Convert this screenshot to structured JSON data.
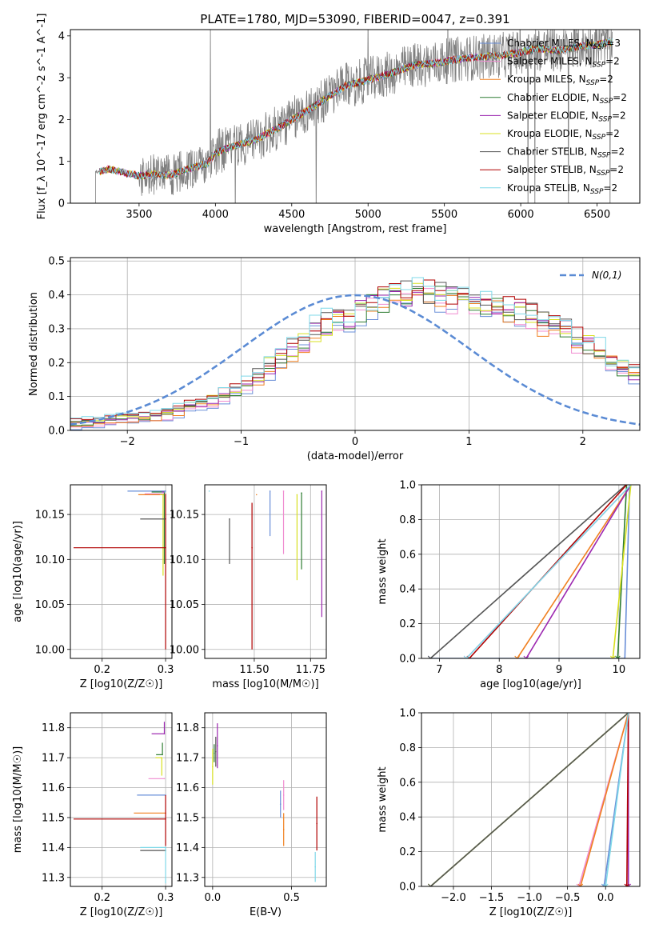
{
  "figure_title": "PLATE=1780, MJD=53090, FIBERID=0047, z=0.391",
  "series_names": [
    "Chabrier MILES",
    "Salpeter MILES",
    "Kroupa MILES",
    "Chabrier ELODIE",
    "Salpeter ELODIE",
    "Kroupa ELODIE",
    "Chabrier STELIB",
    "Salpeter STELIB",
    "Kroupa STELIB"
  ],
  "series_nssp": [
    3,
    2,
    2,
    2,
    2,
    2,
    2,
    2,
    2
  ],
  "series_colors": [
    "#6a8fd8",
    "#f08cd0",
    "#f08020",
    "#2e7d32",
    "#9c27b0",
    "#d8e020",
    "#555555",
    "#b00000",
    "#7fd8e8"
  ],
  "chart_data": [
    {
      "id": "spectrum",
      "type": "line",
      "title": "PLATE=1780, MJD=53090, FIBERID=0047, z=0.391",
      "xlabel": "wavelength [Angstrom, rest frame]",
      "ylabel": "Flux [f_λ 10^-17 erg cm^-2 s^-1 A^-1]",
      "xlim": [
        3050,
        6780
      ],
      "ylim": [
        0,
        4.15
      ],
      "xticks": [
        3500,
        4000,
        4500,
        5000,
        5500,
        6000,
        6500
      ],
      "yticks": [
        0,
        1,
        2,
        3,
        4
      ],
      "data_color": "#808080",
      "data_wavelength_start": 3215,
      "data_wavelength_end": 6600,
      "model_continuum_points": [
        [
          3240,
          0.75
        ],
        [
          3300,
          0.82
        ],
        [
          3400,
          0.73
        ],
        [
          3500,
          0.66
        ],
        [
          3600,
          0.69
        ],
        [
          3700,
          0.66
        ],
        [
          3800,
          0.8
        ],
        [
          3950,
          0.95
        ],
        [
          4000,
          1.2
        ],
        [
          4100,
          1.35
        ],
        [
          4250,
          1.5
        ],
        [
          4400,
          1.78
        ],
        [
          4550,
          2.1
        ],
        [
          4700,
          2.45
        ],
        [
          4850,
          2.8
        ],
        [
          5000,
          2.95
        ],
        [
          5150,
          3.1
        ],
        [
          5300,
          3.3
        ],
        [
          5450,
          3.35
        ],
        [
          5600,
          3.45
        ],
        [
          5750,
          3.5
        ],
        [
          5900,
          3.55
        ],
        [
          6000,
          3.6
        ],
        [
          6100,
          3.7
        ],
        [
          6250,
          3.65
        ],
        [
          6400,
          3.75
        ],
        [
          6600,
          3.85
        ]
      ],
      "grid": false,
      "legend_position": "right"
    },
    {
      "id": "residual-distribution",
      "type": "line",
      "xlabel": "(data-model)/error",
      "ylabel": "Normed distribution",
      "xlim": [
        -2.5,
        2.5
      ],
      "ylim": [
        0,
        0.51
      ],
      "xticks": [
        -2,
        -1,
        0,
        1,
        2
      ],
      "yticks": [
        0,
        0.1,
        0.2,
        0.3,
        0.4,
        0.5
      ],
      "normal_curve_label": "N(0,1)",
      "normal_curve_color": "#5b8bd4",
      "bin_width": 0.1,
      "base_histogram": [
        0.02,
        0.022,
        0.025,
        0.03,
        0.035,
        0.035,
        0.04,
        0.042,
        0.05,
        0.06,
        0.07,
        0.08,
        0.09,
        0.1,
        0.12,
        0.14,
        0.16,
        0.19,
        0.22,
        0.24,
        0.27,
        0.29,
        0.31,
        0.32,
        0.33,
        0.35,
        0.37,
        0.38,
        0.4,
        0.4,
        0.41,
        0.4,
        0.4,
        0.39,
        0.39,
        0.38,
        0.38,
        0.37,
        0.36,
        0.35,
        0.34,
        0.32,
        0.31,
        0.29,
        0.27,
        0.25,
        0.23,
        0.2,
        0.18,
        0.16,
        0.14,
        0.12,
        0.1,
        0.09,
        0.08,
        0.07,
        0.06,
        0.06,
        0.05,
        0.05
      ],
      "grid": true,
      "legend_position": "top-right"
    },
    {
      "id": "age-vs-metallicity",
      "type": "scatter",
      "xlabel": "Z [log10(Z/Z☉)]",
      "ylabel": "age [log10(age/yr)]",
      "xlim": [
        0.15,
        0.31
      ],
      "ylim": [
        9.99,
        10.183
      ],
      "xticks": [
        0.2,
        0.3
      ],
      "yticks": [
        10.0,
        10.05,
        10.1,
        10.15
      ],
      "points": [
        {
          "x": 0.3,
          "y": 10.176,
          "xerr": [
            0.06,
            0.0
          ],
          "yerr": [
            0.0,
            0.0
          ]
        },
        {
          "x": 0.297,
          "y": 10.173,
          "xerr": [
            0.03,
            0.0
          ],
          "yerr": [
            0.0,
            0.0
          ]
        },
        {
          "x": 0.297,
          "y": 10.172,
          "xerr": [
            0.04,
            0.0
          ],
          "yerr": [
            0.0,
            0.0
          ]
        },
        {
          "x": 0.298,
          "y": 10.175,
          "xerr": [
            0.02,
            0.0
          ],
          "yerr": [
            0.08,
            0.0
          ]
        },
        {
          "x": 0.299,
          "y": 10.175,
          "xerr": [
            0.005,
            0.0
          ],
          "yerr": [
            0.0,
            0.0
          ]
        },
        {
          "x": 0.296,
          "y": 10.172,
          "xerr": [
            0.005,
            0.0
          ],
          "yerr": [
            0.09,
            0.0
          ]
        },
        {
          "x": 0.3,
          "y": 10.145,
          "xerr": [
            0.04,
            0.0
          ],
          "yerr": [
            0.0,
            0.0
          ]
        },
        {
          "x": 0.3,
          "y": 10.113,
          "xerr": [
            0.145,
            0.0
          ],
          "yerr": [
            0.113,
            0.06
          ]
        },
        {
          "x": 0.299,
          "y": 10.175,
          "xerr": [
            0.0,
            0.0
          ],
          "yerr": [
            0.0,
            0.0
          ]
        }
      ],
      "grid": true
    },
    {
      "id": "age-vs-mass",
      "type": "scatter",
      "xlabel": "mass [log10(M/M☉)]",
      "ylabel": "",
      "xlim": [
        11.28,
        11.82
      ],
      "ylim": [
        9.99,
        10.183
      ],
      "xticks": [
        11.5,
        11.75
      ],
      "yticks": [
        10.0,
        10.05,
        10.1,
        10.15
      ],
      "points": [
        {
          "x": 11.57,
          "y": 10.176,
          "xerr": [
            0.0,
            0.0
          ],
          "yerr": [
            0.05,
            0.0
          ]
        },
        {
          "x": 11.63,
          "y": 10.176,
          "xerr": [
            0.0,
            0.0
          ],
          "yerr": [
            0.07,
            0.0
          ]
        },
        {
          "x": 11.51,
          "y": 10.172,
          "xerr": [
            0.0,
            0.0
          ],
          "yerr": [
            0.0,
            0.0
          ]
        },
        {
          "x": 11.71,
          "y": 10.174,
          "xerr": [
            0.0,
            0.0
          ],
          "yerr": [
            0.085,
            0.0
          ]
        },
        {
          "x": 11.8,
          "y": 10.176,
          "xerr": [
            0.0,
            0.0
          ],
          "yerr": [
            0.14,
            0.0
          ]
        },
        {
          "x": 11.69,
          "y": 10.172,
          "xerr": [
            0.0,
            0.0
          ],
          "yerr": [
            0.095,
            0.0
          ]
        },
        {
          "x": 11.39,
          "y": 10.145,
          "xerr": [
            0.0,
            0.0
          ],
          "yerr": [
            0.05,
            0.0
          ]
        },
        {
          "x": 11.49,
          "y": 10.113,
          "xerr": [
            0.0,
            0.0
          ],
          "yerr": [
            0.113,
            0.05
          ]
        },
        {
          "x": 11.3,
          "y": 10.176,
          "xerr": [
            0.0,
            0.0
          ],
          "yerr": [
            0.0,
            0.0
          ]
        }
      ],
      "grid": true
    },
    {
      "id": "cumulative-mass-weight-vs-age",
      "type": "line",
      "xlabel": "age [log10(age/yr)]",
      "ylabel": "mass weight",
      "xlim": [
        6.7,
        10.35
      ],
      "ylim": [
        0,
        1.0
      ],
      "xticks": [
        7,
        8,
        9,
        10
      ],
      "yticks": [
        0.0,
        0.2,
        0.4,
        0.6,
        0.8,
        1.0
      ],
      "series": [
        {
          "x": [
            6.85,
            10.1,
            10.18
          ],
          "y": [
            0.0,
            0.0,
            1.0
          ]
        },
        {
          "x": [
            7.45,
            10.2
          ],
          "y": [
            0.0,
            1.0
          ]
        },
        {
          "x": [
            8.3,
            10.2
          ],
          "y": [
            0.0,
            1.0
          ]
        },
        {
          "x": [
            9.98,
            10.13
          ],
          "y": [
            0.0,
            1.0
          ]
        },
        {
          "x": [
            8.45,
            10.2
          ],
          "y": [
            0.0,
            1.0
          ]
        },
        {
          "x": [
            9.9,
            10.2
          ],
          "y": [
            0.0,
            1.0
          ]
        },
        {
          "x": [
            6.85,
            10.12
          ],
          "y": [
            0.0,
            1.0
          ]
        },
        {
          "x": [
            7.5,
            10.13
          ],
          "y": [
            0.0,
            1.0
          ]
        },
        {
          "x": [
            7.45,
            10.2
          ],
          "y": [
            0.0,
            1.0
          ]
        }
      ],
      "grid": true
    },
    {
      "id": "mass-vs-metallicity",
      "type": "scatter",
      "xlabel": "Z [log10(Z/Z☉)]",
      "ylabel": "mass [log10(M/M☉)]",
      "xlim": [
        0.15,
        0.31
      ],
      "ylim": [
        11.27,
        11.85
      ],
      "xticks": [
        0.2,
        0.3
      ],
      "yticks": [
        11.3,
        11.4,
        11.5,
        11.6,
        11.7,
        11.8
      ],
      "points": [
        {
          "x": 0.3,
          "y": 11.575,
          "xerr": [
            0.045,
            0.0
          ],
          "yerr": [
            0.0,
            0.0
          ]
        },
        {
          "x": 0.298,
          "y": 11.63,
          "xerr": [
            0.025,
            0.0
          ],
          "yerr": [
            0.0,
            0.0
          ]
        },
        {
          "x": 0.3,
          "y": 11.515,
          "xerr": [
            0.05,
            0.0
          ],
          "yerr": [
            0.0,
            0.0
          ]
        },
        {
          "x": 0.295,
          "y": 11.71,
          "xerr": [
            0.01,
            0.0
          ],
          "yerr": [
            0.0,
            0.04
          ]
        },
        {
          "x": 0.298,
          "y": 11.78,
          "xerr": [
            0.02,
            0.0
          ],
          "yerr": [
            0.0,
            0.04
          ]
        },
        {
          "x": 0.294,
          "y": 11.7,
          "xerr": [
            0.01,
            0.0
          ],
          "yerr": [
            0.06,
            0.0
          ]
        },
        {
          "x": 0.3,
          "y": 11.39,
          "xerr": [
            0.04,
            0.0
          ],
          "yerr": [
            0.0,
            0.0
          ]
        },
        {
          "x": 0.3,
          "y": 11.495,
          "xerr": [
            0.145,
            0.0
          ],
          "yerr": [
            0.09,
            0.08
          ]
        },
        {
          "x": 0.3,
          "y": 11.4,
          "xerr": [
            0.04,
            0.0
          ],
          "yerr": [
            0.12,
            0.0
          ]
        }
      ],
      "grid": true
    },
    {
      "id": "mass-vs-ebv",
      "type": "scatter",
      "xlabel": "E(B-V)",
      "ylabel": "",
      "xlim": [
        -0.05,
        0.72
      ],
      "ylim": [
        11.27,
        11.85
      ],
      "xticks": [
        0.0,
        0.5
      ],
      "yticks": [
        11.3,
        11.4,
        11.5,
        11.6,
        11.7,
        11.8
      ],
      "points": [
        {
          "x": 0.43,
          "y": 11.545,
          "xerr": [
            0.0,
            0.0
          ],
          "yerr": [
            0.045,
            0.045
          ]
        },
        {
          "x": 0.45,
          "y": 11.575,
          "xerr": [
            0.0,
            0.0
          ],
          "yerr": [
            0.05,
            0.05
          ]
        },
        {
          "x": 0.45,
          "y": 11.46,
          "xerr": [
            0.0,
            0.0
          ],
          "yerr": [
            0.055,
            0.055
          ]
        },
        {
          "x": 0.01,
          "y": 11.715,
          "xerr": [
            0.0,
            0.0
          ],
          "yerr": [
            0.03,
            0.03
          ]
        },
        {
          "x": 0.03,
          "y": 11.74,
          "xerr": [
            0.0,
            0.0
          ],
          "yerr": [
            0.075,
            0.075
          ]
        },
        {
          "x": 0.0,
          "y": 11.67,
          "xerr": [
            0.0,
            0.0
          ],
          "yerr": [
            0.06,
            0.06
          ]
        },
        {
          "x": 0.02,
          "y": 11.72,
          "xerr": [
            0.0,
            0.0
          ],
          "yerr": [
            0.05,
            0.05
          ]
        },
        {
          "x": 0.66,
          "y": 11.48,
          "xerr": [
            0.0,
            0.0
          ],
          "yerr": [
            0.09,
            0.09
          ]
        },
        {
          "x": 0.65,
          "y": 11.335,
          "xerr": [
            0.0,
            0.0
          ],
          "yerr": [
            0.05,
            0.05
          ]
        }
      ],
      "grid": true
    },
    {
      "id": "cumulative-mass-weight-vs-metallicity",
      "type": "line",
      "xlabel": "Z [log10(Z/Z☉)]",
      "ylabel": "mass weight",
      "xlim": [
        -2.42,
        0.45
      ],
      "ylim": [
        0,
        1.0
      ],
      "xticks": [
        -2.0,
        -1.5,
        -1.0,
        -0.5,
        0.0
      ],
      "yticks": [
        0.0,
        0.2,
        0.4,
        0.6,
        0.8,
        1.0
      ],
      "series": [
        {
          "x": [
            -0.02,
            0.3
          ],
          "y": [
            0.0,
            1.0
          ]
        },
        {
          "x": [
            -0.35,
            0.3
          ],
          "y": [
            0.0,
            1.0
          ]
        },
        {
          "x": [
            -0.33,
            0.3
          ],
          "y": [
            0.0,
            1.0
          ]
        },
        {
          "x": [
            -2.3,
            0.3
          ],
          "y": [
            0.0,
            1.0
          ]
        },
        {
          "x": [
            0.3,
            0.3
          ],
          "y": [
            0.0,
            1.0
          ]
        },
        {
          "x": [
            -2.3,
            0.3
          ],
          "y": [
            0.0,
            1.0
          ]
        },
        {
          "x": [
            -2.3,
            0.3
          ],
          "y": [
            0.0,
            1.0
          ]
        },
        {
          "x": [
            0.28,
            0.3
          ],
          "y": [
            0.0,
            1.0
          ]
        },
        {
          "x": [
            0.0,
            0.3
          ],
          "y": [
            0.0,
            1.0
          ]
        }
      ],
      "grid": true
    }
  ]
}
